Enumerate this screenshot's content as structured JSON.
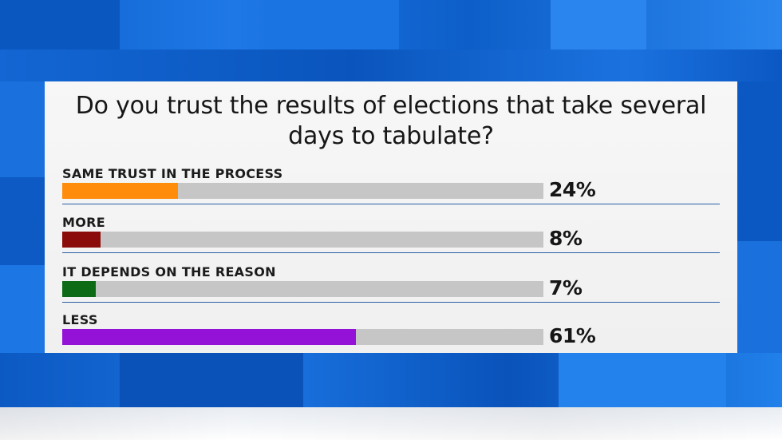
{
  "chart_data": {
    "type": "bar",
    "title": "Do you trust the results of elections that take several days to tabulate?",
    "categories": [
      "SAME TRUST IN THE PROCESS",
      "MORE",
      "IT DEPENDS ON THE REASON",
      "LESS"
    ],
    "values": [
      24,
      8,
      7,
      61
    ],
    "value_labels": [
      "24%",
      "8%",
      "7%",
      "61%"
    ],
    "bar_colors": [
      "#ff8c0a",
      "#8b0a0a",
      "#0c6b14",
      "#9412d8"
    ],
    "track_color": "#c6c6c6",
    "divider_color": "#2b5fa8",
    "ylim": [
      0,
      100
    ],
    "orientation": "horizontal",
    "legend": "none",
    "grid": false
  }
}
